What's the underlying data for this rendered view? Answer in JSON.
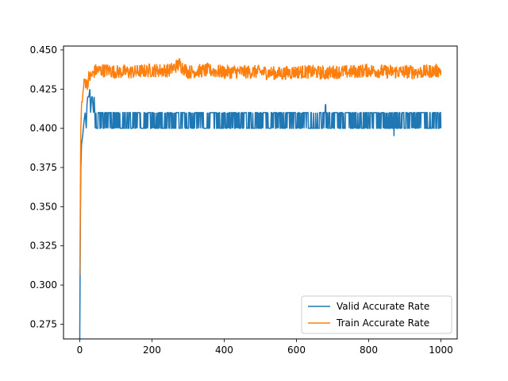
{
  "chart_data": {
    "type": "line",
    "title": "",
    "xlabel": "",
    "ylabel": "",
    "xlim": [
      -45,
      1045
    ],
    "ylim": [
      0.2656,
      0.4525
    ],
    "x_ticks": [
      0,
      200,
      400,
      600,
      800,
      1000
    ],
    "x_tick_labels": [
      "0",
      "200",
      "400",
      "600",
      "800",
      "1000"
    ],
    "y_ticks": [
      0.275,
      0.3,
      0.325,
      0.35,
      0.375,
      0.4,
      0.425,
      0.45
    ],
    "y_tick_labels": [
      "0.275",
      "0.300",
      "0.325",
      "0.350",
      "0.375",
      "0.400",
      "0.425",
      "0.450"
    ],
    "grid": false,
    "legend_position": "lower-right",
    "series": [
      {
        "name": "Valid Accurate Rate",
        "color": "#1f77b4",
        "x": [
          0,
          1,
          2,
          3,
          5,
          8,
          10,
          12,
          15,
          18,
          20,
          22,
          25,
          28,
          30,
          33,
          35,
          38,
          40,
          43,
          45,
          50,
          60,
          80,
          100,
          150,
          200,
          250,
          300,
          350,
          400,
          450,
          500,
          550,
          600,
          650,
          680,
          700,
          750,
          800,
          850,
          870,
          900,
          950,
          1000
        ],
        "y": [
          0.265,
          0.31,
          0.35,
          0.375,
          0.39,
          0.395,
          0.4,
          0.405,
          0.41,
          0.4,
          0.415,
          0.42,
          0.42,
          0.425,
          0.41,
          0.42,
          0.42,
          0.41,
          0.42,
          0.4,
          0.41,
          0.405,
          0.405,
          0.405,
          0.405,
          0.405,
          0.405,
          0.405,
          0.405,
          0.405,
          0.405,
          0.405,
          0.405,
          0.405,
          0.405,
          0.405,
          0.415,
          0.405,
          0.405,
          0.405,
          0.405,
          0.395,
          0.405,
          0.405,
          0.405
        ],
        "oscillation_low": 0.4,
        "oscillation_high": 0.41
      },
      {
        "name": "Train Accurate Rate",
        "color": "#ff7f0e",
        "x": [
          0,
          1,
          2,
          3,
          5,
          8,
          10,
          12,
          15,
          20,
          25,
          30,
          35,
          40,
          45,
          50,
          60,
          80,
          100,
          150,
          200,
          250,
          275,
          300,
          350,
          400,
          450,
          500,
          550,
          600,
          650,
          680,
          700,
          750,
          800,
          850,
          900,
          950,
          1000
        ],
        "y": [
          0.306,
          0.33,
          0.37,
          0.4,
          0.415,
          0.42,
          0.425,
          0.43,
          0.43,
          0.428,
          0.432,
          0.433,
          0.434,
          0.436,
          0.437,
          0.437,
          0.437,
          0.437,
          0.436,
          0.436,
          0.437,
          0.437,
          0.441,
          0.436,
          0.437,
          0.436,
          0.436,
          0.436,
          0.435,
          0.436,
          0.436,
          0.435,
          0.436,
          0.436,
          0.437,
          0.436,
          0.436,
          0.436,
          0.437
        ],
        "oscillation_amplitude": 0.0045
      }
    ]
  }
}
